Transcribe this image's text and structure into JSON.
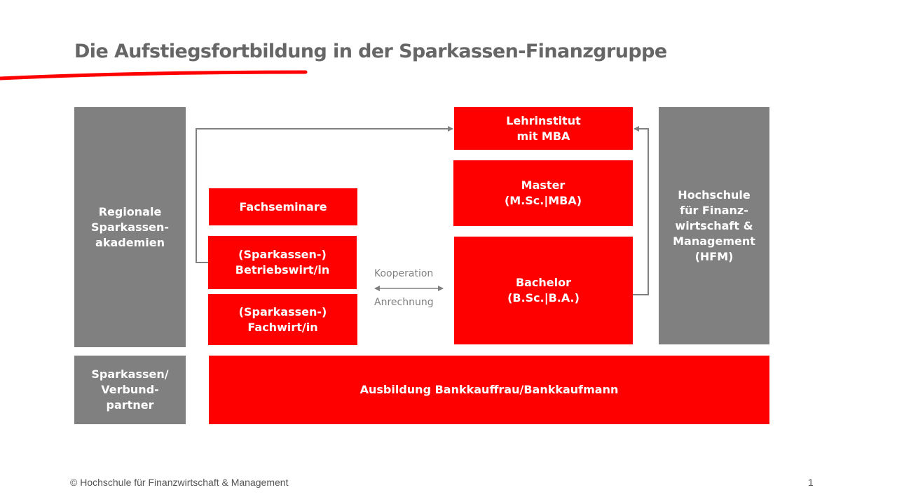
{
  "title": "Die Aufstiegsfortbildung in der Sparkassen-Finanzgruppe",
  "accent_color": "#ff0000",
  "grey_color": "#808080",
  "boxes": {
    "regional": "Regionale\nSparkassen-\nakademien",
    "verbund": "Sparkassen/\nVerbund-\npartner",
    "fachseminare": "Fachseminare",
    "betriebswirt": "(Sparkassen-)\nBetriebswirt/in",
    "fachwirt": "(Sparkassen-)\nFachwirt/in",
    "lehrinstitut": "Lehrinstitut\nmit MBA",
    "master": "Master\n(M.Sc.|MBA)",
    "bachelor": "Bachelor\n(B.Sc.|B.A.)",
    "hfm": "Hochschule\nfür Finanz-\nwirtschaft &\nManagement\n(HFM)",
    "ausbildung": "Ausbildung Bankkauffrau/Bankkaufmann"
  },
  "relation": {
    "top": "Kooperation",
    "bottom": "Anrechnung"
  },
  "footer": {
    "copyright": "© Hochschule für Finanzwirtschaft & Management",
    "page_number": "1"
  }
}
